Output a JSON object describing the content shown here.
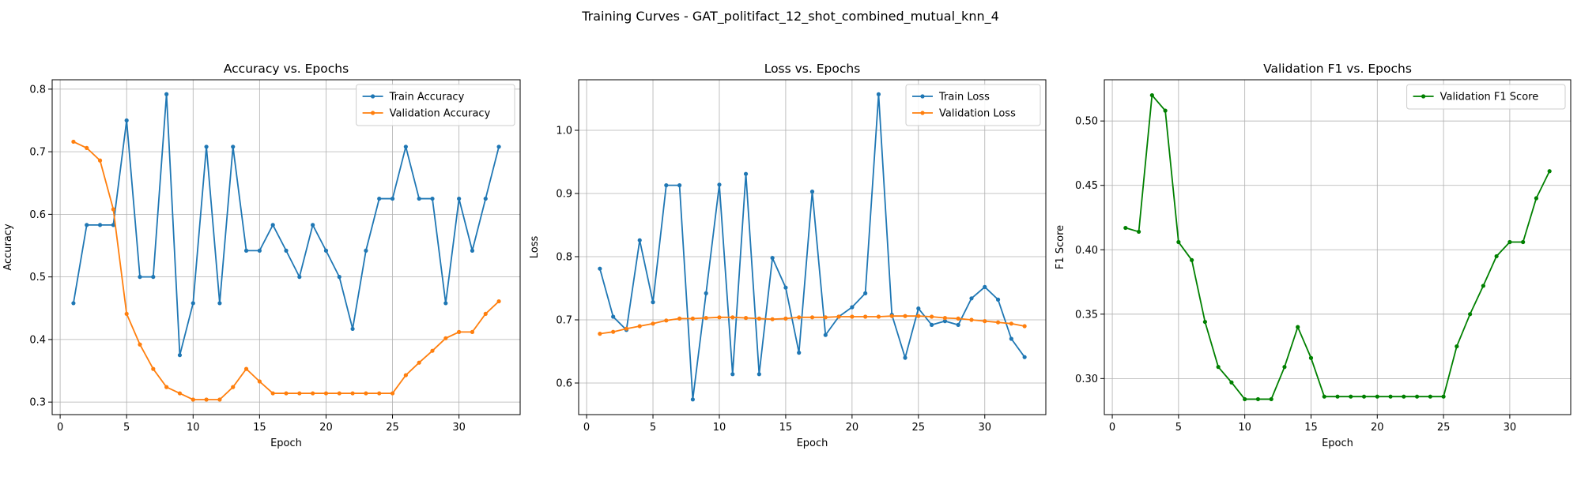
{
  "figure": {
    "suptitle": "Training Curves - GAT_politifact_12_shot_combined_mutual_knn_4"
  },
  "chart_data": [
    {
      "type": "line",
      "title": "Accuracy vs. Epochs",
      "xlabel": "Epoch",
      "ylabel": "Accuracy",
      "xlim": [
        -0.6,
        34.6
      ],
      "ylim": [
        0.28,
        0.815
      ],
      "xticks": [
        0,
        5,
        10,
        15,
        20,
        25,
        30
      ],
      "yticks": [
        0.3,
        0.4,
        0.5,
        0.6,
        0.7,
        0.8
      ],
      "ytick_labels": [
        "0.3",
        "0.4",
        "0.5",
        "0.6",
        "0.7",
        "0.8"
      ],
      "grid": true,
      "legend_position": "upper right",
      "x": [
        1,
        2,
        3,
        4,
        5,
        6,
        7,
        8,
        9,
        10,
        11,
        12,
        13,
        14,
        15,
        16,
        17,
        18,
        19,
        20,
        21,
        22,
        23,
        24,
        25,
        26,
        27,
        28,
        29,
        30,
        31,
        32,
        33
      ],
      "series": [
        {
          "name": "Train Accuracy",
          "color": "#1f77b4",
          "values": [
            0.458,
            0.583,
            0.583,
            0.583,
            0.75,
            0.5,
            0.5,
            0.792,
            0.375,
            0.458,
            0.708,
            0.458,
            0.708,
            0.542,
            0.542,
            0.583,
            0.542,
            0.5,
            0.583,
            0.542,
            0.5,
            0.417,
            0.542,
            0.625,
            0.625,
            0.708,
            0.625,
            0.625,
            0.458,
            0.625,
            0.542,
            0.625,
            0.708
          ]
        },
        {
          "name": "Validation Accuracy",
          "color": "#ff7f0e",
          "values": [
            0.716,
            0.706,
            0.686,
            0.608,
            0.441,
            0.392,
            0.353,
            0.324,
            0.314,
            0.304,
            0.304,
            0.304,
            0.324,
            0.353,
            0.333,
            0.314,
            0.314,
            0.314,
            0.314,
            0.314,
            0.314,
            0.314,
            0.314,
            0.314,
            0.314,
            0.343,
            0.363,
            0.382,
            0.402,
            0.412,
            0.412,
            0.441,
            0.461
          ]
        }
      ]
    },
    {
      "type": "line",
      "title": "Loss vs. Epochs",
      "xlabel": "Epoch",
      "ylabel": "Loss",
      "xlim": [
        -0.6,
        34.6
      ],
      "ylim": [
        0.55,
        1.08
      ],
      "xticks": [
        0,
        5,
        10,
        15,
        20,
        25,
        30
      ],
      "yticks": [
        0.6,
        0.7,
        0.8,
        0.9,
        1.0
      ],
      "ytick_labels": [
        "0.6",
        "0.7",
        "0.8",
        "0.9",
        "1.0"
      ],
      "grid": true,
      "legend_position": "upper right",
      "x": [
        1,
        2,
        3,
        4,
        5,
        6,
        7,
        8,
        9,
        10,
        11,
        12,
        13,
        14,
        15,
        16,
        17,
        18,
        19,
        20,
        21,
        22,
        23,
        24,
        25,
        26,
        27,
        28,
        29,
        30,
        31,
        32,
        33
      ],
      "series": [
        {
          "name": "Train Loss",
          "color": "#1f77b4",
          "values": [
            0.781,
            0.705,
            0.684,
            0.826,
            0.728,
            0.913,
            0.913,
            0.574,
            0.742,
            0.914,
            0.614,
            0.931,
            0.614,
            0.798,
            0.751,
            0.648,
            0.903,
            0.676,
            0.705,
            0.72,
            0.742,
            1.057,
            0.708,
            0.64,
            0.718,
            0.692,
            0.698,
            0.692,
            0.734,
            0.752,
            0.732,
            0.67,
            0.641
          ]
        },
        {
          "name": "Validation Loss",
          "color": "#ff7f0e",
          "values": [
            0.678,
            0.681,
            0.686,
            0.69,
            0.694,
            0.699,
            0.702,
            0.702,
            0.703,
            0.704,
            0.704,
            0.703,
            0.702,
            0.701,
            0.702,
            0.704,
            0.704,
            0.704,
            0.705,
            0.705,
            0.705,
            0.705,
            0.706,
            0.706,
            0.706,
            0.705,
            0.703,
            0.702,
            0.7,
            0.698,
            0.696,
            0.694,
            0.69
          ]
        }
      ]
    },
    {
      "type": "line",
      "title": "Validation F1 vs. Epochs",
      "xlabel": "Epoch",
      "ylabel": "F1 Score",
      "xlim": [
        -0.6,
        34.6
      ],
      "ylim": [
        0.272,
        0.532
      ],
      "xticks": [
        0,
        5,
        10,
        15,
        20,
        25,
        30
      ],
      "yticks": [
        0.3,
        0.35,
        0.4,
        0.45,
        0.5
      ],
      "ytick_labels": [
        "0.30",
        "0.35",
        "0.40",
        "0.45",
        "0.50"
      ],
      "grid": true,
      "legend_position": "upper right",
      "x": [
        1,
        2,
        3,
        4,
        5,
        6,
        7,
        8,
        9,
        10,
        11,
        12,
        13,
        14,
        15,
        16,
        17,
        18,
        19,
        20,
        21,
        22,
        23,
        24,
        25,
        26,
        27,
        28,
        29,
        30,
        31,
        32,
        33
      ],
      "series": [
        {
          "name": "Validation F1 Score",
          "color": "#008000",
          "values": [
            0.417,
            0.414,
            0.52,
            0.508,
            0.406,
            0.392,
            0.344,
            0.309,
            0.297,
            0.284,
            0.284,
            0.284,
            0.309,
            0.34,
            0.316,
            0.286,
            0.286,
            0.286,
            0.286,
            0.286,
            0.286,
            0.286,
            0.286,
            0.286,
            0.286,
            0.325,
            0.35,
            0.372,
            0.395,
            0.406,
            0.406,
            0.44,
            0.461
          ]
        }
      ]
    }
  ]
}
